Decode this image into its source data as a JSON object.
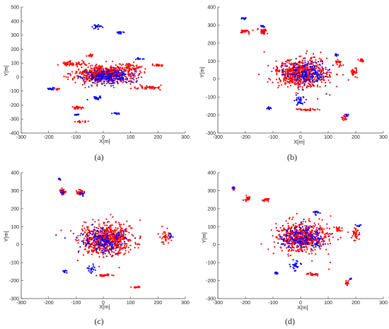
{
  "chart_data": [
    {
      "type": "scatter",
      "caption": "(a)",
      "xlabel": "X[m]",
      "ylabel": "Y[m]",
      "xlim": [
        -300,
        300
      ],
      "ylim": [
        -400,
        500
      ],
      "xticks": [
        -300,
        -200,
        -100,
        0,
        100,
        200,
        300
      ],
      "yticks": [
        -400,
        -300,
        -200,
        -100,
        0,
        100,
        200,
        300,
        400,
        500
      ],
      "series": [
        {
          "color": "#ff0000",
          "clusters": [
            {
              "cx": 0,
              "cy": 20,
              "rx": 105,
              "ry": 60,
              "n": 650
            },
            {
              "cx": -110,
              "cy": 95,
              "rx": 45,
              "ry": 15,
              "n": 60
            },
            {
              "cx": 100,
              "cy": 70,
              "rx": 40,
              "ry": 30,
              "n": 50
            },
            {
              "cx": 200,
              "cy": 85,
              "rx": 20,
              "ry": 8,
              "n": 25
            },
            {
              "cx": -45,
              "cy": 155,
              "rx": 12,
              "ry": 10,
              "n": 15
            },
            {
              "cx": -95,
              "cy": -220,
              "rx": 15,
              "ry": 10,
              "n": 20
            },
            {
              "cx": -80,
              "cy": -320,
              "rx": 18,
              "ry": 8,
              "n": 15
            },
            {
              "cx": 165,
              "cy": -75,
              "rx": 55,
              "ry": 15,
              "n": 45
            },
            {
              "cx": -170,
              "cy": -85,
              "rx": 12,
              "ry": 8,
              "n": 8
            }
          ]
        },
        {
          "color": "#0000ff",
          "clusters": [
            {
              "cx": 20,
              "cy": 0,
              "rx": 90,
              "ry": 55,
              "n": 220
            },
            {
              "cx": -20,
              "cy": 360,
              "rx": 20,
              "ry": 15,
              "n": 20
            },
            {
              "cx": 60,
              "cy": 320,
              "rx": 15,
              "ry": 8,
              "n": 15
            },
            {
              "cx": 130,
              "cy": 130,
              "rx": 15,
              "ry": 8,
              "n": 12
            },
            {
              "cx": -190,
              "cy": -85,
              "rx": 15,
              "ry": 8,
              "n": 15
            },
            {
              "cx": 50,
              "cy": -260,
              "rx": 15,
              "ry": 8,
              "n": 12
            },
            {
              "cx": -100,
              "cy": -270,
              "rx": 10,
              "ry": 6,
              "n": 8
            },
            {
              "cx": -20,
              "cy": -150,
              "rx": 25,
              "ry": 15,
              "n": 20
            }
          ]
        }
      ]
    },
    {
      "type": "scatter",
      "caption": "(b)",
      "xlabel": "X[m]",
      "ylabel": "Y[m]",
      "xlim": [
        -300,
        300
      ],
      "ylim": [
        -300,
        400
      ],
      "xticks": [
        -300,
        -200,
        -100,
        0,
        100,
        200,
        300
      ],
      "yticks": [
        -300,
        -200,
        -100,
        0,
        100,
        200,
        300,
        400
      ],
      "series": [
        {
          "color": "#ff0000",
          "clusters": [
            {
              "cx": 5,
              "cy": 30,
              "rx": 95,
              "ry": 80,
              "n": 620
            },
            {
              "cx": -205,
              "cy": 265,
              "rx": 15,
              "ry": 10,
              "n": 25
            },
            {
              "cx": -135,
              "cy": 265,
              "rx": 18,
              "ry": 15,
              "n": 30
            },
            {
              "cx": 25,
              "cy": -170,
              "rx": 30,
              "ry": 6,
              "n": 30
            },
            {
              "cx": 160,
              "cy": -215,
              "rx": 10,
              "ry": 15,
              "n": 15
            },
            {
              "cx": 220,
              "cy": 105,
              "rx": 12,
              "ry": 8,
              "n": 15
            },
            {
              "cx": 195,
              "cy": 40,
              "rx": 12,
              "ry": 25,
              "n": 25
            },
            {
              "cx": 140,
              "cy": 90,
              "rx": 12,
              "ry": 20,
              "n": 20
            }
          ]
        },
        {
          "color": "#0000ff",
          "clusters": [
            {
              "cx": 20,
              "cy": 30,
              "rx": 80,
              "ry": 70,
              "n": 160
            },
            {
              "cx": -210,
              "cy": 335,
              "rx": 10,
              "ry": 8,
              "n": 10
            },
            {
              "cx": -140,
              "cy": 290,
              "rx": 8,
              "ry": 8,
              "n": 8
            },
            {
              "cx": -5,
              "cy": -120,
              "rx": 20,
              "ry": 35,
              "n": 30
            },
            {
              "cx": -115,
              "cy": -160,
              "rx": 8,
              "ry": 8,
              "n": 10
            },
            {
              "cx": 130,
              "cy": 135,
              "rx": 8,
              "ry": 8,
              "n": 8
            },
            {
              "cx": 170,
              "cy": -200,
              "rx": 8,
              "ry": 8,
              "n": 8
            }
          ]
        }
      ]
    },
    {
      "type": "scatter",
      "caption": "(c)",
      "xlabel": "X[m]",
      "ylabel": "Y[m]",
      "xlim": [
        -300,
        300
      ],
      "ylim": [
        -300,
        400
      ],
      "xticks": [
        -300,
        -200,
        -100,
        0,
        100,
        200,
        300
      ],
      "yticks": [
        -300,
        -200,
        -100,
        0,
        100,
        200,
        300,
        400
      ],
      "series": [
        {
          "color": "#ff0000",
          "clusters": [
            {
              "cx": 10,
              "cy": 30,
              "rx": 95,
              "ry": 85,
              "n": 640
            },
            {
              "cx": -150,
              "cy": 290,
              "rx": 15,
              "ry": 20,
              "n": 25
            },
            {
              "cx": -85,
              "cy": 290,
              "rx": 15,
              "ry": 18,
              "n": 25
            },
            {
              "cx": 5,
              "cy": -170,
              "rx": 28,
              "ry": 6,
              "n": 30
            },
            {
              "cx": 115,
              "cy": -235,
              "rx": 15,
              "ry": 8,
              "n": 12
            },
            {
              "cx": 225,
              "cy": 40,
              "rx": 20,
              "ry": 35,
              "n": 35
            }
          ]
        },
        {
          "color": "#0000ff",
          "clusters": [
            {
              "cx": 0,
              "cy": 20,
              "rx": 80,
              "ry": 75,
              "n": 170
            },
            {
              "cx": -160,
              "cy": 365,
              "rx": 8,
              "ry": 6,
              "n": 8
            },
            {
              "cx": -80,
              "cy": 285,
              "rx": 10,
              "ry": 10,
              "n": 10
            },
            {
              "cx": -150,
              "cy": 290,
              "rx": 6,
              "ry": 10,
              "n": 8
            },
            {
              "cx": -140,
              "cy": -150,
              "rx": 8,
              "ry": 8,
              "n": 10
            },
            {
              "cx": -45,
              "cy": -135,
              "rx": 15,
              "ry": 25,
              "n": 20
            },
            {
              "cx": 245,
              "cy": 50,
              "rx": 8,
              "ry": 12,
              "n": 8
            }
          ]
        }
      ]
    },
    {
      "type": "scatter",
      "caption": "(d)",
      "xlabel": "X[m]",
      "ylabel": "Y[m]",
      "xlim": [
        -300,
        300
      ],
      "ylim": [
        -300,
        400
      ],
      "xticks": [
        -300,
        -200,
        -100,
        0,
        100,
        200,
        300
      ],
      "yticks": [
        -300,
        -200,
        -100,
        0,
        100,
        200,
        300,
        400
      ],
      "series": [
        {
          "color": "#ff0000",
          "clusters": [
            {
              "cx": 5,
              "cy": 40,
              "rx": 90,
              "ry": 80,
              "n": 600
            },
            {
              "cx": -240,
              "cy": 310,
              "rx": 6,
              "ry": 6,
              "n": 8
            },
            {
              "cx": -190,
              "cy": 255,
              "rx": 15,
              "ry": 15,
              "n": 25
            },
            {
              "cx": -130,
              "cy": 250,
              "rx": 12,
              "ry": 12,
              "n": 20
            },
            {
              "cx": 40,
              "cy": -165,
              "rx": 25,
              "ry": 6,
              "n": 25
            },
            {
              "cx": 170,
              "cy": -210,
              "rx": 10,
              "ry": 15,
              "n": 12
            },
            {
              "cx": 200,
              "cy": 60,
              "rx": 15,
              "ry": 40,
              "n": 35
            },
            {
              "cx": 140,
              "cy": 80,
              "rx": 12,
              "ry": 20,
              "n": 15
            }
          ]
        },
        {
          "color": "#0000ff",
          "clusters": [
            {
              "cx": 10,
              "cy": 40,
              "rx": 80,
              "ry": 70,
              "n": 160
            },
            {
              "cx": -245,
              "cy": 315,
              "rx": 6,
              "ry": 5,
              "n": 6
            },
            {
              "cx": -20,
              "cy": -120,
              "rx": 20,
              "ry": 30,
              "n": 25
            },
            {
              "cx": -90,
              "cy": -160,
              "rx": 8,
              "ry": 8,
              "n": 10
            },
            {
              "cx": 60,
              "cy": 180,
              "rx": 12,
              "ry": 10,
              "n": 12
            },
            {
              "cx": 210,
              "cy": 105,
              "rx": 10,
              "ry": 6,
              "n": 8
            },
            {
              "cx": 180,
              "cy": -190,
              "rx": 6,
              "ry": 6,
              "n": 6
            }
          ]
        }
      ]
    }
  ]
}
